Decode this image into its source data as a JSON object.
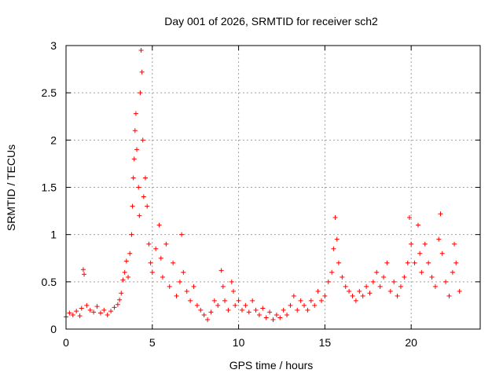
{
  "chart_data": {
    "type": "scatter",
    "title": "Day 001 of 2026, SRMTID for receiver sch2",
    "xlabel": "GPS time / hours",
    "ylabel": "SRMTID / TECUs",
    "xlim": [
      0,
      24
    ],
    "ylim": [
      0,
      3
    ],
    "xticks": [
      0,
      5,
      10,
      15,
      20
    ],
    "xtick_labels": [
      "0",
      "5",
      "10",
      "15",
      "20"
    ],
    "yticks": [
      0,
      0.5,
      1,
      1.5,
      2,
      2.5,
      3
    ],
    "ytick_labels": [
      "0",
      "0.5",
      "1",
      "1.5",
      "2",
      "2.5",
      "3"
    ],
    "grid": true,
    "marker": "+",
    "marker_color": "#ff0000",
    "series": [
      {
        "name": "sch2",
        "points": [
          [
            0.0,
            0.13
          ],
          [
            0.2,
            0.17
          ],
          [
            0.4,
            0.15
          ],
          [
            0.6,
            0.19
          ],
          [
            0.8,
            0.14
          ],
          [
            0.9,
            0.22
          ],
          [
            1.0,
            0.63
          ],
          [
            1.05,
            0.58
          ],
          [
            1.2,
            0.25
          ],
          [
            1.4,
            0.2
          ],
          [
            1.6,
            0.18
          ],
          [
            1.8,
            0.24
          ],
          [
            2.0,
            0.17
          ],
          [
            2.2,
            0.2
          ],
          [
            2.4,
            0.15
          ],
          [
            2.6,
            0.19
          ],
          [
            2.8,
            0.23
          ],
          [
            3.0,
            0.26
          ],
          [
            3.1,
            0.31
          ],
          [
            3.2,
            0.38
          ],
          [
            3.3,
            0.52
          ],
          [
            3.4,
            0.6
          ],
          [
            3.5,
            0.72
          ],
          [
            3.6,
            0.55
          ],
          [
            3.7,
            0.8
          ],
          [
            3.8,
            1.0
          ],
          [
            3.85,
            1.3
          ],
          [
            3.9,
            1.6
          ],
          [
            3.95,
            1.8
          ],
          [
            4.0,
            2.1
          ],
          [
            4.05,
            2.28
          ],
          [
            4.1,
            1.9
          ],
          [
            4.2,
            1.5
          ],
          [
            4.25,
            1.2
          ],
          [
            4.3,
            2.5
          ],
          [
            4.35,
            2.95
          ],
          [
            4.4,
            2.72
          ],
          [
            4.45,
            2.0
          ],
          [
            4.5,
            1.4
          ],
          [
            4.6,
            1.6
          ],
          [
            4.7,
            1.3
          ],
          [
            4.8,
            0.9
          ],
          [
            4.9,
            0.7
          ],
          [
            5.0,
            0.6
          ],
          [
            5.2,
            0.85
          ],
          [
            5.4,
            1.1
          ],
          [
            5.5,
            0.75
          ],
          [
            5.6,
            0.55
          ],
          [
            5.8,
            0.9
          ],
          [
            6.0,
            0.45
          ],
          [
            6.2,
            0.7
          ],
          [
            6.4,
            0.35
          ],
          [
            6.6,
            0.5
          ],
          [
            6.7,
            1.0
          ],
          [
            6.8,
            0.6
          ],
          [
            7.0,
            0.4
          ],
          [
            7.2,
            0.3
          ],
          [
            7.4,
            0.45
          ],
          [
            7.6,
            0.25
          ],
          [
            7.8,
            0.2
          ],
          [
            8.0,
            0.15
          ],
          [
            8.2,
            0.1
          ],
          [
            8.4,
            0.18
          ],
          [
            8.6,
            0.3
          ],
          [
            8.8,
            0.25
          ],
          [
            9.0,
            0.62
          ],
          [
            9.1,
            0.45
          ],
          [
            9.2,
            0.3
          ],
          [
            9.4,
            0.2
          ],
          [
            9.6,
            0.5
          ],
          [
            9.7,
            0.4
          ],
          [
            9.8,
            0.25
          ],
          [
            10.0,
            0.3
          ],
          [
            10.2,
            0.2
          ],
          [
            10.4,
            0.25
          ],
          [
            10.6,
            0.18
          ],
          [
            10.8,
            0.3
          ],
          [
            11.0,
            0.2
          ],
          [
            11.2,
            0.15
          ],
          [
            11.4,
            0.22
          ],
          [
            11.6,
            0.12
          ],
          [
            11.8,
            0.18
          ],
          [
            12.0,
            0.1
          ],
          [
            12.2,
            0.15
          ],
          [
            12.4,
            0.12
          ],
          [
            12.6,
            0.2
          ],
          [
            12.8,
            0.15
          ],
          [
            13.0,
            0.25
          ],
          [
            13.2,
            0.35
          ],
          [
            13.4,
            0.2
          ],
          [
            13.6,
            0.3
          ],
          [
            13.8,
            0.25
          ],
          [
            14.0,
            0.2
          ],
          [
            14.2,
            0.3
          ],
          [
            14.4,
            0.25
          ],
          [
            14.6,
            0.4
          ],
          [
            14.8,
            0.3
          ],
          [
            15.0,
            0.35
          ],
          [
            15.2,
            0.5
          ],
          [
            15.4,
            0.6
          ],
          [
            15.5,
            0.85
          ],
          [
            15.6,
            1.18
          ],
          [
            15.7,
            0.95
          ],
          [
            15.8,
            0.7
          ],
          [
            16.0,
            0.55
          ],
          [
            16.2,
            0.45
          ],
          [
            16.4,
            0.4
          ],
          [
            16.6,
            0.35
          ],
          [
            16.8,
            0.3
          ],
          [
            17.0,
            0.4
          ],
          [
            17.2,
            0.35
          ],
          [
            17.4,
            0.45
          ],
          [
            17.6,
            0.38
          ],
          [
            17.8,
            0.5
          ],
          [
            18.0,
            0.6
          ],
          [
            18.2,
            0.45
          ],
          [
            18.4,
            0.55
          ],
          [
            18.6,
            0.7
          ],
          [
            18.8,
            0.4
          ],
          [
            19.0,
            0.5
          ],
          [
            19.2,
            0.35
          ],
          [
            19.4,
            0.45
          ],
          [
            19.6,
            0.55
          ],
          [
            19.8,
            0.7
          ],
          [
            19.9,
            1.18
          ],
          [
            20.0,
            0.9
          ],
          [
            20.2,
            0.7
          ],
          [
            20.4,
            1.1
          ],
          [
            20.5,
            0.8
          ],
          [
            20.6,
            0.6
          ],
          [
            20.8,
            0.9
          ],
          [
            21.0,
            0.7
          ],
          [
            21.2,
            0.55
          ],
          [
            21.4,
            0.45
          ],
          [
            21.6,
            0.95
          ],
          [
            21.7,
            1.22
          ],
          [
            21.8,
            0.8
          ],
          [
            22.0,
            0.5
          ],
          [
            22.2,
            0.35
          ],
          [
            22.4,
            0.6
          ],
          [
            22.5,
            0.9
          ],
          [
            22.6,
            0.7
          ],
          [
            22.8,
            0.4
          ]
        ]
      }
    ]
  }
}
